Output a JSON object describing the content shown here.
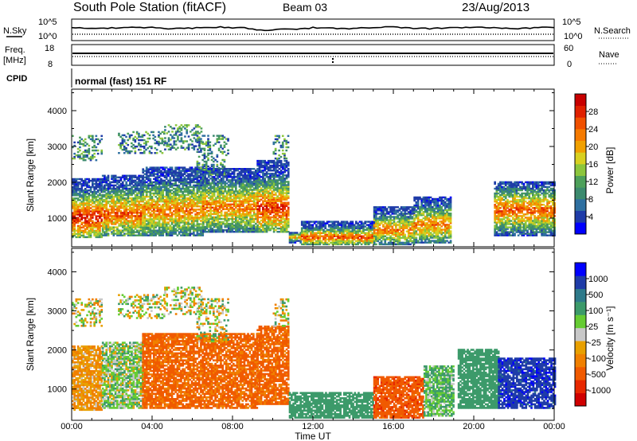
{
  "header": {
    "station": "South Pole Station (fitACF)",
    "beam": "Beam 03",
    "date": "23/Aug/2013"
  },
  "panel_labels": {
    "nsky": "N.Sky",
    "nsky_ticks": [
      "10^5",
      "10^0"
    ],
    "nsearch": "N.Search",
    "nsearch_ticks": [
      "10^5",
      "10^0"
    ],
    "freq_line1": "Freq.",
    "freq_line2": "[MHz]",
    "freq_ticks": [
      "18",
      "8"
    ],
    "nave": "Nave",
    "nave_ticks": [
      "60",
      "0"
    ],
    "cpid": "CPID",
    "cpid_value": "normal (fast) 151 RF"
  },
  "colors": {
    "power_scale": [
      "#0000ff",
      "#1f3ca8",
      "#2e6fa0",
      "#3c8a6e",
      "#4da05a",
      "#8cc63c",
      "#d8d020",
      "#f0a000",
      "#f57a00",
      "#f05000",
      "#e02000",
      "#c80000"
    ],
    "velocity_scale": [
      "#0000ff",
      "#1f3ca8",
      "#2e7a8a",
      "#3c9a6a",
      "#66cc33",
      "#c8c8c8",
      "#e8a000",
      "#f08000",
      "#f05a00",
      "#e82800",
      "#d00000"
    ]
  },
  "chart_data": [
    {
      "type": "heatmap",
      "title": "Power",
      "xlabel": "Time UT",
      "ylabel": "Slant Range [km]",
      "xticks": [
        "00:00",
        "04:00",
        "08:00",
        "12:00",
        "16:00",
        "20:00",
        "00:00"
      ],
      "xlim_hours": [
        0,
        24
      ],
      "yticks": [
        "1000",
        "2000",
        "3000",
        "4000"
      ],
      "ylim": [
        200,
        4600
      ],
      "colorbar_label": "Power [dB]",
      "colorbar_ticks": [
        "4",
        "8",
        "12",
        "16",
        "20",
        "24",
        "28"
      ],
      "colorbar_range": [
        0,
        30
      ],
      "regions": [
        {
          "t0": 0.0,
          "t1": 1.5,
          "r0": 450,
          "r1": 2100,
          "core": 1000,
          "peak": 28
        },
        {
          "t0": 1.5,
          "t1": 3.5,
          "r0": 500,
          "r1": 2200,
          "core": 1100,
          "peak": 24
        },
        {
          "t0": 3.5,
          "t1": 6.5,
          "r0": 500,
          "r1": 2400,
          "core": 1200,
          "peak": 22
        },
        {
          "t0": 6.5,
          "t1": 9.2,
          "r0": 600,
          "r1": 2400,
          "core": 1300,
          "peak": 22
        },
        {
          "t0": 9.2,
          "t1": 10.8,
          "r0": 600,
          "r1": 2600,
          "core": 1250,
          "peak": 26
        },
        {
          "t0": 10.8,
          "t1": 11.4,
          "r0": 300,
          "r1": 600,
          "core": 450,
          "peak": 20
        },
        {
          "t0": 11.4,
          "t1": 15.0,
          "r0": 250,
          "r1": 900,
          "core": 450,
          "peak": 24
        },
        {
          "t0": 15.0,
          "t1": 17.0,
          "r0": 250,
          "r1": 1300,
          "core": 650,
          "peak": 22
        },
        {
          "t0": 17.0,
          "t1": 18.8,
          "r0": 300,
          "r1": 1600,
          "core": 800,
          "peak": 22
        },
        {
          "t0": 21.0,
          "t1": 24.0,
          "r0": 500,
          "r1": 2000,
          "core": 1200,
          "peak": 24
        }
      ],
      "far_patches": [
        {
          "t0": 0.0,
          "t1": 1.5,
          "r0": 2600,
          "r1": 3300
        },
        {
          "t0": 2.3,
          "t1": 4.6,
          "r0": 2800,
          "r1": 3400
        },
        {
          "t0": 4.6,
          "t1": 6.4,
          "r0": 2900,
          "r1": 3600
        },
        {
          "t0": 6.2,
          "t1": 7.8,
          "r0": 2200,
          "r1": 3300
        },
        {
          "t0": 10.0,
          "t1": 10.8,
          "r0": 2600,
          "r1": 3300
        }
      ]
    },
    {
      "type": "heatmap",
      "title": "Velocity",
      "xlabel": "Time UT",
      "ylabel": "Slant Range [km]",
      "xticks": [
        "00:00",
        "04:00",
        "08:00",
        "12:00",
        "16:00",
        "20:00",
        "00:00"
      ],
      "xlim_hours": [
        0,
        24
      ],
      "yticks": [
        "1000",
        "2000",
        "3000",
        "4000"
      ],
      "ylim": [
        200,
        4600
      ],
      "colorbar_label": "Velocity [m s⁻¹]",
      "colorbar_ticks": [
        "-1000",
        "-500",
        "-100",
        "-25",
        "25",
        "100",
        "500",
        "1000"
      ],
      "regions": [
        {
          "t0": 0.0,
          "t1": 1.5,
          "r0": 450,
          "r1": 2100,
          "v": -100
        },
        {
          "t0": 1.5,
          "t1": 3.5,
          "r0": 500,
          "r1": 2200,
          "v": 50
        },
        {
          "t0": 3.5,
          "t1": 9.2,
          "r0": 500,
          "r1": 2400,
          "v": -300
        },
        {
          "t0": 9.2,
          "t1": 10.8,
          "r0": 600,
          "r1": 2600,
          "v": -300
        },
        {
          "t0": 10.8,
          "t1": 15.0,
          "r0": 250,
          "r1": 900,
          "v": 200
        },
        {
          "t0": 15.0,
          "t1": 17.5,
          "r0": 250,
          "r1": 1300,
          "v": -400
        },
        {
          "t0": 17.5,
          "t1": 19.0,
          "r0": 300,
          "r1": 1600,
          "v": 100
        },
        {
          "t0": 19.2,
          "t1": 21.2,
          "r0": 500,
          "r1": 2000,
          "v": 200
        },
        {
          "t0": 21.2,
          "t1": 24.0,
          "r0": 500,
          "r1": 1800,
          "v": 800
        }
      ]
    }
  ]
}
